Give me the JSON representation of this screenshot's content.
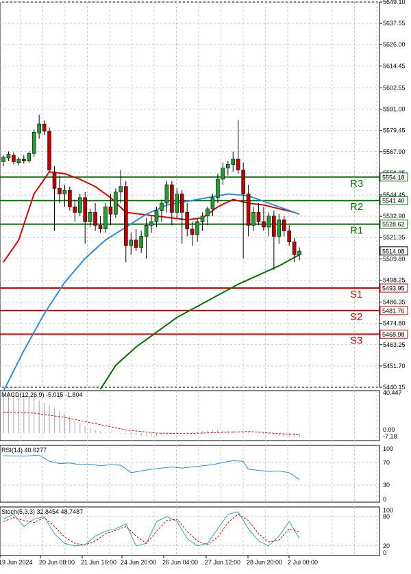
{
  "chart_data": [
    {
      "type": "candlestick",
      "panel": "price",
      "ylim": [
        5440.15,
        5649.1
      ],
      "y_ticks": [
        "5649.10",
        "5637.55",
        "5626.00",
        "5614.45",
        "5602.55",
        "5591.00",
        "5579.45",
        "5567.90",
        "5556.35",
        "5544.45",
        "5532.90",
        "5521.35",
        "5509.80",
        "5498.25",
        "5486.35",
        "5474.80",
        "5463.25",
        "5451.70",
        "5440.15"
      ],
      "x_labels": [
        "19 Jun 2024",
        "20 Jun 08:00",
        "21 Jun 16:00",
        "24 Jun 20:00",
        "26 Jun 04:00",
        "27 Jun 12:00",
        "28 Jun 20:00",
        "2 Jul 00:00"
      ],
      "last_price": "5514.08",
      "candles": [
        {
          "o": 5562.5,
          "h": 5566.0,
          "l": 5560.0,
          "c": 5565.0
        },
        {
          "o": 5564.5,
          "h": 5568.0,
          "l": 5563.0,
          "c": 5566.5
        },
        {
          "o": 5566.0,
          "h": 5567.5,
          "l": 5561.0,
          "c": 5562.5
        },
        {
          "o": 5562.0,
          "h": 5565.0,
          "l": 5560.5,
          "c": 5564.0
        },
        {
          "o": 5564.0,
          "h": 5566.0,
          "l": 5561.5,
          "c": 5563.0
        },
        {
          "o": 5563.0,
          "h": 5568.0,
          "l": 5562.0,
          "c": 5567.0
        },
        {
          "o": 5567.0,
          "h": 5580.0,
          "l": 5565.0,
          "c": 5578.5
        },
        {
          "o": 5578.0,
          "h": 5588.0,
          "l": 5575.0,
          "c": 5583.0
        },
        {
          "o": 5583.0,
          "h": 5585.0,
          "l": 5577.0,
          "c": 5579.0
        },
        {
          "o": 5579.0,
          "h": 5581.0,
          "l": 5557.0,
          "c": 5558.0
        },
        {
          "o": 5557.0,
          "h": 5560.0,
          "l": 5525.0,
          "c": 5548.0
        },
        {
          "o": 5548.0,
          "h": 5555.0,
          "l": 5540.0,
          "c": 5545.0
        },
        {
          "o": 5545.0,
          "h": 5550.0,
          "l": 5538.0,
          "c": 5547.0
        },
        {
          "o": 5547.0,
          "h": 5549.0,
          "l": 5536.0,
          "c": 5538.0
        },
        {
          "o": 5538.0,
          "h": 5542.0,
          "l": 5530.0,
          "c": 5535.0
        },
        {
          "o": 5535.0,
          "h": 5545.0,
          "l": 5533.0,
          "c": 5543.0
        },
        {
          "o": 5543.0,
          "h": 5546.0,
          "l": 5518.0,
          "c": 5530.0
        },
        {
          "o": 5530.0,
          "h": 5537.0,
          "l": 5527.0,
          "c": 5535.0
        },
        {
          "o": 5535.0,
          "h": 5540.0,
          "l": 5525.0,
          "c": 5528.0
        },
        {
          "o": 5528.0,
          "h": 5533.0,
          "l": 5524.0,
          "c": 5526.0
        },
        {
          "o": 5526.0,
          "h": 5540.0,
          "l": 5524.0,
          "c": 5538.0
        },
        {
          "o": 5538.0,
          "h": 5545.0,
          "l": 5528.0,
          "c": 5534.0
        },
        {
          "o": 5534.0,
          "h": 5548.0,
          "l": 5532.0,
          "c": 5546.0
        },
        {
          "o": 5546.0,
          "h": 5558.0,
          "l": 5540.0,
          "c": 5549.0
        },
        {
          "o": 5549.0,
          "h": 5552.0,
          "l": 5508.0,
          "c": 5517.0
        },
        {
          "o": 5517.0,
          "h": 5524.0,
          "l": 5512.0,
          "c": 5520.0
        },
        {
          "o": 5520.0,
          "h": 5526.0,
          "l": 5514.0,
          "c": 5516.0
        },
        {
          "o": 5516.0,
          "h": 5525.0,
          "l": 5513.0,
          "c": 5522.0
        },
        {
          "o": 5522.0,
          "h": 5532.0,
          "l": 5510.0,
          "c": 5528.0
        },
        {
          "o": 5528.0,
          "h": 5533.0,
          "l": 5524.0,
          "c": 5530.0
        },
        {
          "o": 5530.0,
          "h": 5538.0,
          "l": 5527.0,
          "c": 5536.0
        },
        {
          "o": 5536.0,
          "h": 5542.0,
          "l": 5530.0,
          "c": 5540.0
        },
        {
          "o": 5540.0,
          "h": 5552.0,
          "l": 5535.0,
          "c": 5550.0
        },
        {
          "o": 5550.0,
          "h": 5552.0,
          "l": 5528.0,
          "c": 5535.0
        },
        {
          "o": 5535.0,
          "h": 5548.0,
          "l": 5532.0,
          "c": 5545.0
        },
        {
          "o": 5545.0,
          "h": 5547.0,
          "l": 5518.0,
          "c": 5535.0
        },
        {
          "o": 5535.0,
          "h": 5540.0,
          "l": 5522.0,
          "c": 5526.0
        },
        {
          "o": 5526.0,
          "h": 5530.0,
          "l": 5517.0,
          "c": 5523.0
        },
        {
          "o": 5523.0,
          "h": 5532.0,
          "l": 5519.0,
          "c": 5530.0
        },
        {
          "o": 5530.0,
          "h": 5535.0,
          "l": 5525.0,
          "c": 5533.0
        },
        {
          "o": 5533.0,
          "h": 5538.0,
          "l": 5528.0,
          "c": 5537.0
        },
        {
          "o": 5537.0,
          "h": 5545.0,
          "l": 5533.0,
          "c": 5543.0
        },
        {
          "o": 5543.0,
          "h": 5556.0,
          "l": 5540.0,
          "c": 5553.0
        },
        {
          "o": 5553.0,
          "h": 5562.0,
          "l": 5550.0,
          "c": 5559.0
        },
        {
          "o": 5559.0,
          "h": 5563.0,
          "l": 5555.0,
          "c": 5561.0
        },
        {
          "o": 5561.0,
          "h": 5568.0,
          "l": 5557.0,
          "c": 5564.0
        },
        {
          "o": 5564.0,
          "h": 5585.0,
          "l": 5556.0,
          "c": 5558.0
        },
        {
          "o": 5558.0,
          "h": 5562.0,
          "l": 5510.0,
          "c": 5545.0
        },
        {
          "o": 5545.0,
          "h": 5550.0,
          "l": 5522.0,
          "c": 5528.0
        },
        {
          "o": 5528.0,
          "h": 5538.0,
          "l": 5525.0,
          "c": 5535.0
        },
        {
          "o": 5535.0,
          "h": 5540.0,
          "l": 5528.0,
          "c": 5530.0
        },
        {
          "o": 5530.0,
          "h": 5538.0,
          "l": 5525.0,
          "c": 5527.0
        },
        {
          "o": 5527.0,
          "h": 5535.0,
          "l": 5522.0,
          "c": 5533.0
        },
        {
          "o": 5533.0,
          "h": 5536.0,
          "l": 5504.0,
          "c": 5522.0
        },
        {
          "o": 5522.0,
          "h": 5534.0,
          "l": 5518.0,
          "c": 5531.0
        },
        {
          "o": 5531.0,
          "h": 5533.0,
          "l": 5522.0,
          "c": 5525.0
        },
        {
          "o": 5525.0,
          "h": 5528.0,
          "l": 5517.0,
          "c": 5519.0
        },
        {
          "o": 5519.0,
          "h": 5521.0,
          "l": 5508.0,
          "c": 5512.0
        },
        {
          "o": 5512.0,
          "h": 5516.0,
          "l": 5509.0,
          "c": 5514.0
        }
      ],
      "sr_levels": [
        {
          "name": "R3",
          "value": 5554.18,
          "label": "5554.18",
          "color": "#007000"
        },
        {
          "name": "R2",
          "value": 5541.4,
          "label": "5541.40",
          "color": "#007000"
        },
        {
          "name": "R1",
          "value": 5528.62,
          "label": "5528.62",
          "color": "#007000"
        },
        {
          "name": "S1",
          "value": 5493.95,
          "label": "5493.95",
          "color": "#d40000"
        },
        {
          "name": "S2",
          "value": 5481.76,
          "label": "5481.76",
          "color": "#d40000"
        },
        {
          "name": "S3",
          "value": 5468.98,
          "label": "5468.98",
          "color": "#d40000"
        }
      ],
      "moving_averages": [
        {
          "color": "#e00000",
          "points": [
            [
              0,
              5508
            ],
            [
              3,
              5520
            ],
            [
              6,
              5545
            ],
            [
              9,
              5557
            ],
            [
              12,
              5556
            ],
            [
              15,
              5553
            ],
            [
              18,
              5549
            ],
            [
              21,
              5543
            ],
            [
              24,
              5535
            ],
            [
              27,
              5534
            ],
            [
              30,
              5533
            ],
            [
              33,
              5532
            ],
            [
              36,
              5531
            ],
            [
              39,
              5532
            ],
            [
              42,
              5538
            ],
            [
              45,
              5542
            ],
            [
              48,
              5540
            ],
            [
              51,
              5539
            ],
            [
              54,
              5537
            ],
            [
              57,
              5535
            ],
            [
              58,
              5534
            ]
          ]
        },
        {
          "color": "#2a8fe0",
          "points": [
            [
              0,
              5438
            ],
            [
              4,
              5460
            ],
            [
              8,
              5480
            ],
            [
              12,
              5497
            ],
            [
              16,
              5510
            ],
            [
              20,
              5520
            ],
            [
              24,
              5527
            ],
            [
              28,
              5534
            ],
            [
              32,
              5539
            ],
            [
              36,
              5541
            ],
            [
              40,
              5543
            ],
            [
              44,
              5545
            ],
            [
              48,
              5544
            ],
            [
              52,
              5540
            ],
            [
              56,
              5536
            ],
            [
              58,
              5534
            ]
          ]
        },
        {
          "color": "#007000",
          "points": [
            [
              19,
              5439
            ],
            [
              22,
              5452
            ],
            [
              26,
              5462
            ],
            [
              30,
              5470
            ],
            [
              34,
              5478
            ],
            [
              38,
              5484
            ],
            [
              42,
              5490
            ],
            [
              46,
              5496
            ],
            [
              50,
              5501
            ],
            [
              54,
              5506
            ],
            [
              58,
              5512
            ]
          ]
        }
      ]
    },
    {
      "type": "macd",
      "panel": "macd",
      "title": "MACD(12,26,9) -5.015 -1.804",
      "ylim": [
        -7.18,
        40.447
      ],
      "y_ticks": [
        "40.447",
        "0.00",
        "-7.18"
      ],
      "histogram": [
        40,
        39,
        38,
        37,
        36,
        35,
        33,
        31,
        29,
        27,
        24,
        21,
        18,
        15,
        12,
        9,
        7,
        5,
        3,
        2,
        1,
        0.5,
        0,
        -0.5,
        -1,
        -1.5,
        -2,
        -2.5,
        -3,
        -3,
        -2.5,
        -2,
        -1.5,
        -1,
        -0.5,
        0,
        0.5,
        1,
        1.5,
        2,
        2.5,
        3,
        3.5,
        3,
        2.5,
        2,
        1.5,
        1,
        0.5,
        0,
        -0.5,
        -1,
        -1.5,
        -2,
        -2.5,
        -3,
        -3.5,
        -4,
        -4.2
      ],
      "signal": [
        [
          0,
          20
        ],
        [
          6,
          19
        ],
        [
          12,
          15
        ],
        [
          18,
          9
        ],
        [
          24,
          3
        ],
        [
          30,
          0
        ],
        [
          36,
          -0.5
        ],
        [
          42,
          0.5
        ],
        [
          48,
          1.5
        ],
        [
          54,
          -0.5
        ],
        [
          58,
          -1.8
        ]
      ]
    },
    {
      "type": "line",
      "panel": "rsi",
      "title": "RSI(14) 40.6277",
      "ylim": [
        0,
        100
      ],
      "y_ticks": [
        "100",
        "70",
        "30",
        "0"
      ],
      "values": [
        [
          0,
          82
        ],
        [
          4,
          81
        ],
        [
          7,
          83
        ],
        [
          9,
          72
        ],
        [
          11,
          68
        ],
        [
          13,
          69
        ],
        [
          15,
          66
        ],
        [
          17,
          67
        ],
        [
          19,
          64
        ],
        [
          21,
          66
        ],
        [
          23,
          65
        ],
        [
          25,
          52
        ],
        [
          27,
          55
        ],
        [
          29,
          58
        ],
        [
          31,
          60
        ],
        [
          33,
          62
        ],
        [
          35,
          60
        ],
        [
          37,
          62
        ],
        [
          39,
          64
        ],
        [
          41,
          66
        ],
        [
          43,
          70
        ],
        [
          45,
          73
        ],
        [
          47,
          72
        ],
        [
          48,
          58
        ],
        [
          50,
          56
        ],
        [
          52,
          54
        ],
        [
          54,
          55
        ],
        [
          56,
          52
        ],
        [
          58,
          40
        ]
      ]
    },
    {
      "type": "line",
      "panel": "stoch",
      "title": "Stoch(5,3,3) 32.8454 48.7487",
      "ylim": [
        0,
        100
      ],
      "y_ticks": [
        "100",
        "80",
        "20",
        "0"
      ],
      "k": [
        [
          0,
          75
        ],
        [
          2,
          85
        ],
        [
          4,
          60
        ],
        [
          6,
          75
        ],
        [
          8,
          80
        ],
        [
          10,
          45
        ],
        [
          12,
          25
        ],
        [
          14,
          20
        ],
        [
          16,
          22
        ],
        [
          18,
          40
        ],
        [
          20,
          50
        ],
        [
          22,
          55
        ],
        [
          24,
          65
        ],
        [
          26,
          20
        ],
        [
          28,
          25
        ],
        [
          30,
          70
        ],
        [
          32,
          80
        ],
        [
          34,
          70
        ],
        [
          36,
          35
        ],
        [
          38,
          20
        ],
        [
          40,
          25
        ],
        [
          42,
          55
        ],
        [
          44,
          85
        ],
        [
          46,
          90
        ],
        [
          48,
          55
        ],
        [
          50,
          30
        ],
        [
          52,
          20
        ],
        [
          54,
          40
        ],
        [
          56,
          70
        ],
        [
          58,
          35
        ]
      ],
      "d": [
        [
          0,
          70
        ],
        [
          2,
          78
        ],
        [
          4,
          72
        ],
        [
          6,
          68
        ],
        [
          8,
          78
        ],
        [
          10,
          60
        ],
        [
          12,
          38
        ],
        [
          14,
          25
        ],
        [
          16,
          22
        ],
        [
          18,
          30
        ],
        [
          20,
          45
        ],
        [
          22,
          52
        ],
        [
          24,
          60
        ],
        [
          26,
          40
        ],
        [
          28,
          25
        ],
        [
          30,
          50
        ],
        [
          32,
          72
        ],
        [
          34,
          75
        ],
        [
          36,
          50
        ],
        [
          38,
          30
        ],
        [
          40,
          22
        ],
        [
          42,
          38
        ],
        [
          44,
          68
        ],
        [
          46,
          85
        ],
        [
          48,
          72
        ],
        [
          50,
          45
        ],
        [
          52,
          28
        ],
        [
          54,
          32
        ],
        [
          56,
          55
        ],
        [
          58,
          49
        ]
      ]
    }
  ]
}
